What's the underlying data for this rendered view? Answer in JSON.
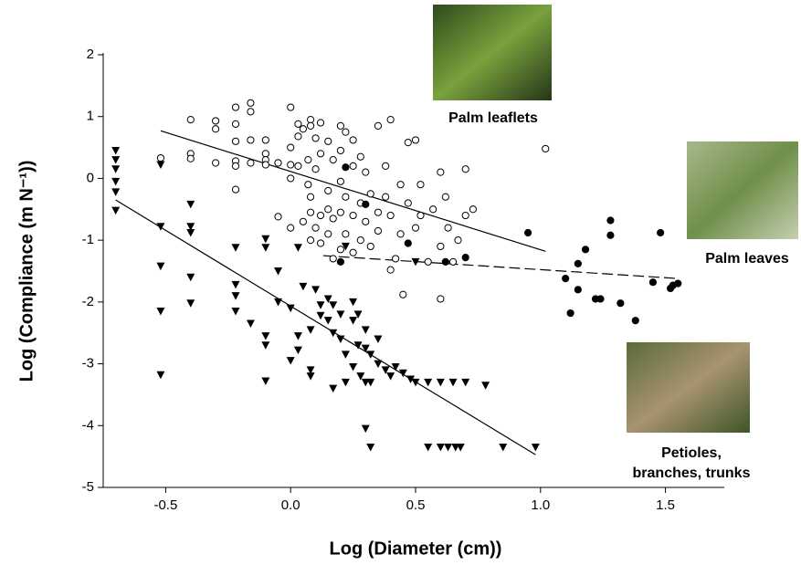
{
  "chart_data": {
    "type": "scatter",
    "xlabel": "Log (Diameter (cm))",
    "ylabel": "Log (Compliance (m N⁻¹))",
    "annotations": [
      "Palm leaflets",
      "Palm leaves",
      "Petioles,",
      "branches, trunks"
    ],
    "xlim": [
      -0.75,
      1.75
    ],
    "ylim": [
      -5,
      2
    ],
    "xticks": [
      -0.5,
      {
        "value": 0,
        "label": "0.0"
      },
      0.5,
      {
        "value": 1,
        "label": "1.0"
      },
      1.5
    ],
    "yticks": [
      2,
      1,
      0,
      -1,
      -2,
      -3,
      -4,
      -5
    ],
    "series": [
      {
        "marker": "open-circle",
        "color": "#000000",
        "x": [
          -0.52,
          -0.4,
          -0.4,
          -0.4,
          -0.3,
          -0.3,
          -0.3,
          -0.22,
          -0.22,
          -0.22,
          -0.22,
          -0.22,
          -0.22,
          -0.16,
          -0.16,
          -0.16,
          -0.16,
          -0.1,
          -0.1,
          -0.1,
          -0.1,
          -0.05,
          -0.05,
          -0.05,
          0,
          0,
          0,
          0,
          0.03,
          0.03,
          0.03,
          0.05,
          0.05,
          0.07,
          0.07,
          0.08,
          0.08,
          0.08,
          0.08,
          0.1,
          0.1,
          0.1,
          0.12,
          0.12,
          0.12,
          0.12,
          0.15,
          0.15,
          0.15,
          0.15,
          0.17,
          0.17,
          0.17,
          0.2,
          0.2,
          0.2,
          0.2,
          0.2,
          0.22,
          0.22,
          0.22,
          0.25,
          0.25,
          0.25,
          0.25,
          0.28,
          0.28,
          0.28,
          0.3,
          0.3,
          0.32,
          0.32,
          0.35,
          0.35,
          0.35,
          0.38,
          0.38,
          0.4,
          0.4,
          0.4,
          0.42,
          0.44,
          0.44,
          0.45,
          0.47,
          0.47,
          0.5,
          0.5,
          0.52,
          0.52,
          0.55,
          0.57,
          0.6,
          0.6,
          0.6,
          0.62,
          0.63,
          0.65,
          0.67,
          0.7,
          0.7,
          0.73,
          1.02,
          0.08,
          0
        ],
        "values": [
          0.33,
          0.95,
          0.4,
          0.32,
          0.93,
          0.8,
          0.25,
          1.15,
          0.88,
          0.6,
          0.28,
          0.2,
          -0.18,
          1.22,
          1.08,
          0.62,
          0.25,
          0.62,
          0.4,
          0.3,
          0.22,
          0.25,
          0.25,
          -0.62,
          1.15,
          0.5,
          0.22,
          -0.8,
          0.88,
          0.68,
          0.2,
          0.8,
          -0.7,
          0.3,
          -0.1,
          0.95,
          0.85,
          -0.3,
          -0.55,
          0.65,
          0.15,
          -0.8,
          0.9,
          0.4,
          -0.6,
          -1.05,
          0.6,
          -0.2,
          -0.5,
          -0.9,
          0.3,
          -0.65,
          -1.3,
          0.85,
          0.45,
          -0.05,
          -0.55,
          -1.15,
          0.75,
          -0.3,
          -0.9,
          0.62,
          0.2,
          -0.6,
          -1.2,
          0.35,
          -0.4,
          -1,
          0.1,
          -0.7,
          -0.25,
          -1.1,
          0.85,
          -0.55,
          -0.85,
          0.2,
          -0.3,
          0.95,
          -0.6,
          -1.48,
          -1.3,
          -0.1,
          -0.9,
          -1.88,
          0.58,
          -0.4,
          0.62,
          -0.8,
          -0.1,
          -0.6,
          -1.35,
          -0.5,
          0.1,
          -1.1,
          -1.95,
          -0.3,
          -0.8,
          -1.35,
          -1,
          0.15,
          -0.6,
          -0.5,
          0.48,
          -1,
          0
        ]
      },
      {
        "marker": "filled-circle",
        "color": "#000000",
        "x": [
          0.22,
          0.3,
          0.47,
          0.2,
          0.62,
          0.7,
          0.95,
          1.1,
          1.12,
          1.15,
          1.15,
          1.18,
          1.22,
          1.24,
          1.28,
          1.28,
          1.32,
          1.38,
          1.45,
          1.48,
          1.52,
          1.53,
          1.55
        ],
        "values": [
          0.18,
          -0.42,
          -1.05,
          -1.35,
          -1.35,
          -1.28,
          -0.88,
          -1.62,
          -2.18,
          -1.38,
          -1.8,
          -1.15,
          -1.95,
          -1.95,
          -0.68,
          -0.92,
          -2.02,
          -2.3,
          -1.68,
          -0.88,
          -1.78,
          -1.73,
          -1.7
        ]
      },
      {
        "marker": "filled-triangle",
        "color": "#000000",
        "x": [
          -0.7,
          -0.7,
          -0.7,
          -0.7,
          -0.7,
          -0.7,
          -0.52,
          -0.52,
          -0.52,
          -0.52,
          -0.52,
          -0.4,
          -0.4,
          -0.4,
          -0.4,
          -0.4,
          -0.22,
          -0.22,
          -0.22,
          -0.22,
          -0.16,
          -0.1,
          -0.1,
          -0.1,
          -0.1,
          -0.1,
          -0.05,
          -0.05,
          0,
          0,
          0.03,
          0.03,
          0.03,
          0.05,
          0.08,
          0.08,
          0.08,
          0.1,
          0.12,
          0.12,
          0.15,
          0.15,
          0.17,
          0.17,
          0.17,
          0.2,
          0.2,
          0.22,
          0.22,
          0.22,
          0.25,
          0.25,
          0.25,
          0.27,
          0.27,
          0.28,
          0.3,
          0.3,
          0.3,
          0.3,
          0.32,
          0.32,
          0.32,
          0.35,
          0.35,
          0.38,
          0.4,
          0.42,
          0.45,
          0.48,
          0.5,
          0.5,
          0.55,
          0.55,
          0.6,
          0.6,
          0.63,
          0.65,
          0.66,
          0.68,
          0.7,
          0.78,
          0.85,
          0.98
        ],
        "values": [
          0.45,
          0.3,
          0.15,
          -0.05,
          -0.22,
          -0.52,
          0.22,
          -0.78,
          -1.42,
          -2.15,
          -3.18,
          -0.42,
          -0.78,
          -0.88,
          -1.6,
          -2.02,
          -1.12,
          -1.72,
          -1.9,
          -2.15,
          -2.35,
          -0.98,
          -1.12,
          -2.55,
          -2.7,
          -3.28,
          -1.5,
          -2,
          -2.1,
          -2.95,
          -1.12,
          -2.55,
          -2.78,
          -1.75,
          -2.45,
          -3.1,
          -3.2,
          -1.8,
          -2.05,
          -2.22,
          -1.95,
          -2.3,
          -2.05,
          -2.5,
          -3.4,
          -2.2,
          -2.6,
          -1.1,
          -2.85,
          -3.3,
          -2,
          -2.3,
          -3.05,
          -2.2,
          -2.7,
          -3.2,
          -2.45,
          -2.75,
          -3.3,
          -4.05,
          -2.85,
          -3.3,
          -4.35,
          -2.6,
          -3,
          -3.1,
          -3.2,
          -3.05,
          -3.15,
          -3.25,
          -1.35,
          -3.3,
          -3.3,
          -4.35,
          -3.3,
          -4.35,
          -4.35,
          -3.3,
          -4.35,
          -4.35,
          -3.3,
          -3.35,
          -4.35,
          -4.35
        ]
      }
    ],
    "fit_lines": [
      {
        "style": "solid",
        "x": [
          -0.52,
          1.02
        ],
        "values": [
          0.77,
          -1.18
        ]
      },
      {
        "style": "dashed",
        "x": [
          0.13,
          1.55
        ],
        "values": [
          -1.25,
          -1.62
        ]
      },
      {
        "style": "solid",
        "x": [
          -0.7,
          0.98
        ],
        "values": [
          -0.35,
          -4.47
        ]
      }
    ]
  }
}
